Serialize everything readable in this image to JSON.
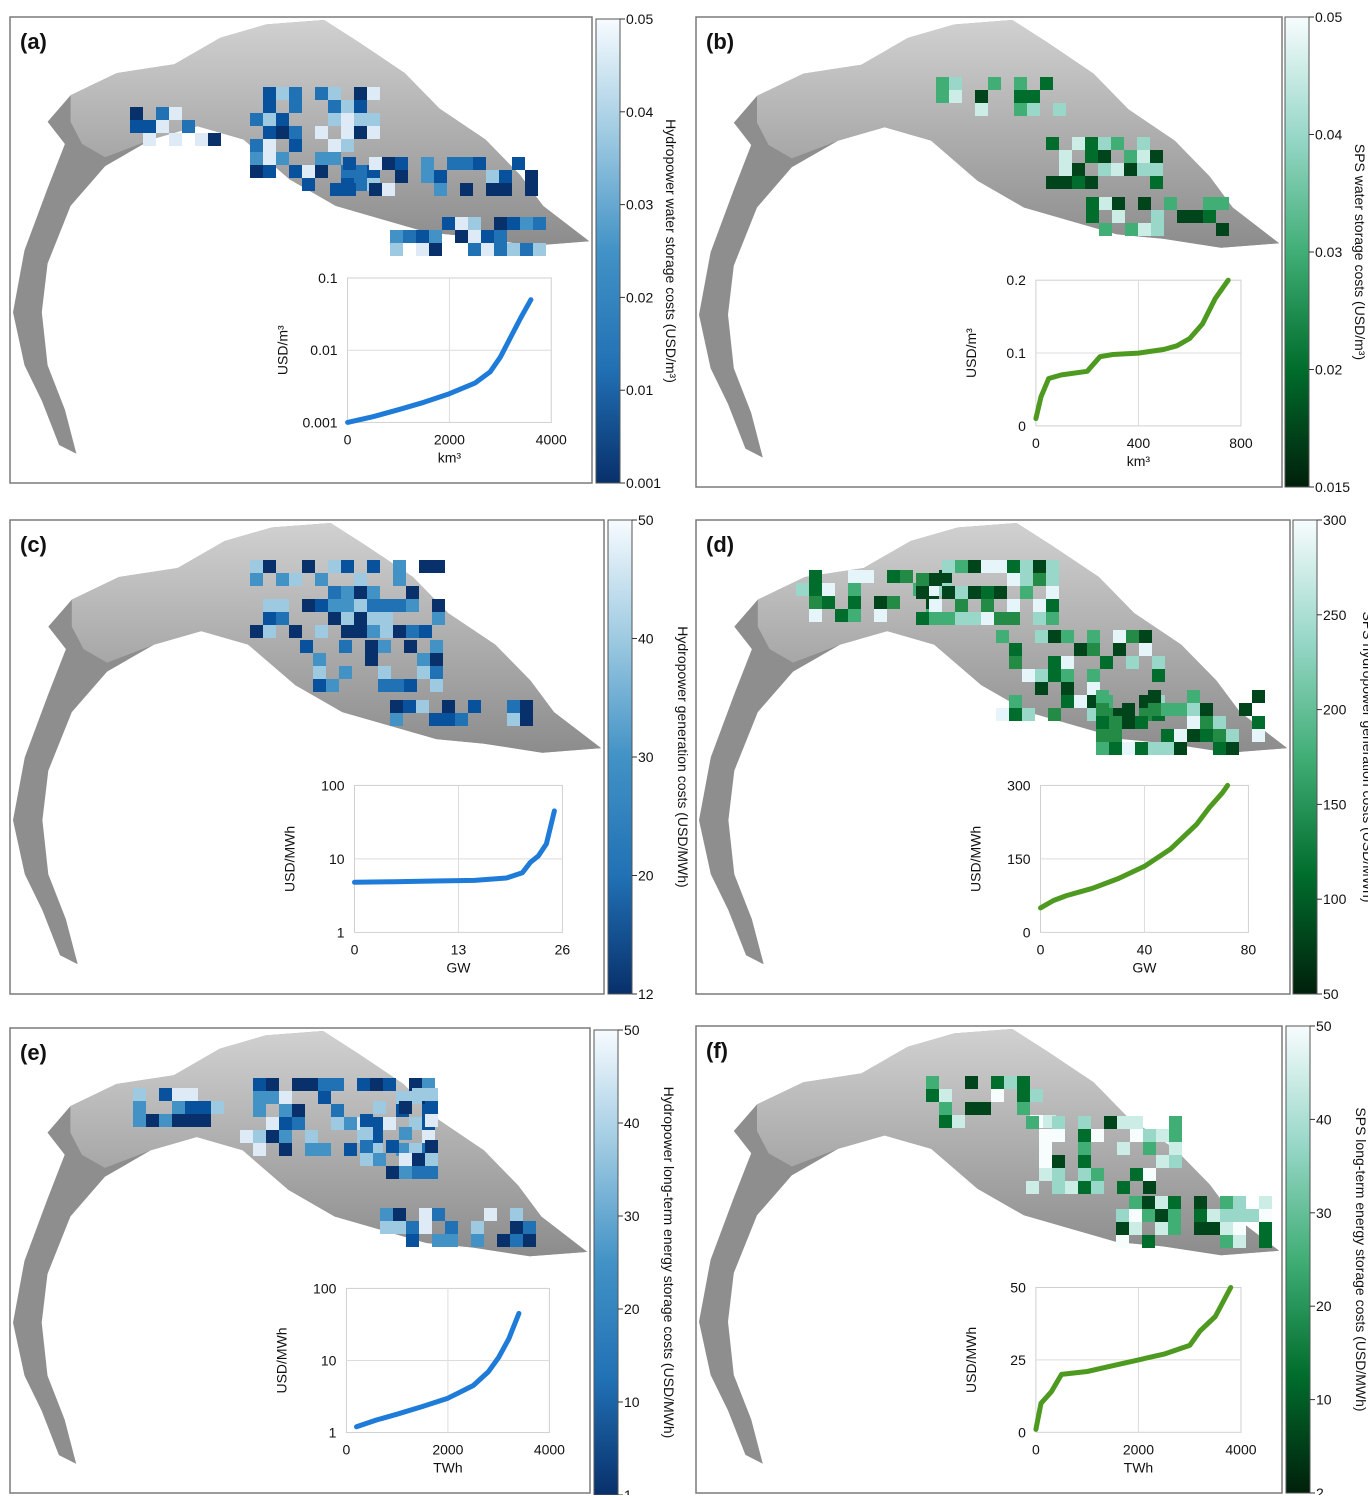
{
  "panels": [
    {
      "id": "a",
      "label": "(a)",
      "colorbar": {
        "title": "Hydropower water storage costs (USD/m³)",
        "ticks": [
          "0.05",
          "0.04",
          "0.03",
          "0.02",
          "0.01",
          "0.001"
        ],
        "colors": [
          "#f7fbff",
          "#9ecae1",
          "#4292c6",
          "#2171b5",
          "#08306b"
        ]
      },
      "cells": {
        "palette": [
          "#08306b",
          "#08519c",
          "#2171b5",
          "#4292c6",
          "#9ecae1",
          "#deebf7"
        ],
        "clusters": [
          [
            240,
            70,
            130,
            110
          ],
          [
            120,
            90,
            100,
            40
          ],
          [
            380,
            200,
            160,
            45
          ],
          [
            320,
            140,
            220,
            50
          ]
        ]
      },
      "chart_data": {
        "type": "line",
        "color": "#1f7bd8",
        "xlabel": "km³",
        "ylabel": "USD/m³",
        "xlim": [
          0,
          4000
        ],
        "ylim": [
          0.001,
          0.1
        ],
        "yscale": "log",
        "xticks": [
          "0",
          "2000",
          "4000"
        ],
        "yticks": [
          "0.1",
          "0.01",
          "0.001"
        ],
        "x": [
          0,
          500,
          1000,
          1500,
          2000,
          2500,
          2800,
          3000,
          3200,
          3400,
          3600
        ],
        "y": [
          0.001,
          0.0012,
          0.0015,
          0.0019,
          0.0025,
          0.0035,
          0.005,
          0.008,
          0.015,
          0.028,
          0.05
        ]
      }
    },
    {
      "id": "b",
      "label": "(b)",
      "colorbar": {
        "title": "SPS water storage costs (USD/m³)",
        "ticks": [
          "0.05",
          "0.04",
          "0.03",
          "0.02",
          "0.015"
        ],
        "colors": [
          "#f7fcfd",
          "#99d8c9",
          "#41ae76",
          "#006d2c",
          "#00200b"
        ]
      },
      "cells": {
        "palette": [
          "#00441b",
          "#006d2c",
          "#41ae76",
          "#99d8c9",
          "#ccece6"
        ],
        "clusters": [
          [
            240,
            60,
            130,
            40
          ],
          [
            350,
            120,
            120,
            60
          ],
          [
            390,
            180,
            150,
            45
          ]
        ]
      },
      "chart_data": {
        "type": "line",
        "color": "#4e9a21",
        "xlabel": "km³",
        "ylabel": "USD/m³",
        "xlim": [
          0,
          800
        ],
        "ylim": [
          0,
          0.2
        ],
        "yscale": "linear",
        "xticks": [
          "0",
          "400",
          "800"
        ],
        "yticks": [
          "0.2",
          "0.1",
          "0"
        ],
        "x": [
          0,
          20,
          50,
          100,
          200,
          250,
          300,
          400,
          500,
          550,
          600,
          650,
          700,
          750
        ],
        "y": [
          0.01,
          0.04,
          0.065,
          0.07,
          0.075,
          0.095,
          0.098,
          0.1,
          0.105,
          0.11,
          0.12,
          0.14,
          0.175,
          0.2
        ]
      }
    },
    {
      "id": "c",
      "label": "(c)",
      "colorbar": {
        "title": "Hydropower generation costs (USD/MWh)",
        "ticks": [
          "50",
          "40",
          "30",
          "20",
          "12"
        ],
        "colors": [
          "#f7fbff",
          "#9ecae1",
          "#4292c6",
          "#2171b5",
          "#08306b"
        ]
      },
      "cells": {
        "palette": [
          "#08306b",
          "#08519c",
          "#2171b5",
          "#4292c6",
          "#9ecae1"
        ],
        "clusters": [
          [
            240,
            40,
            200,
            80
          ],
          [
            290,
            120,
            150,
            60
          ],
          [
            380,
            180,
            150,
            35
          ]
        ]
      },
      "chart_data": {
        "type": "line",
        "color": "#1f7bd8",
        "xlabel": "GW",
        "ylabel": "USD/MWh",
        "xlim": [
          0,
          26
        ],
        "ylim": [
          1,
          100
        ],
        "yscale": "log",
        "xticks": [
          "0",
          "13",
          "26"
        ],
        "yticks": [
          "100",
          "10",
          "1"
        ],
        "x": [
          0,
          5,
          10,
          15,
          19,
          21,
          22,
          23,
          24,
          25
        ],
        "y": [
          4.8,
          4.9,
          5,
          5.1,
          5.5,
          6.5,
          9,
          11,
          16,
          45
        ]
      }
    },
    {
      "id": "d",
      "label": "(d)",
      "colorbar": {
        "title": "SPS hydropower generation costs (USD/MWh)",
        "ticks": [
          "300",
          "250",
          "200",
          "150",
          "100",
          "50"
        ],
        "colors": [
          "#f7fcfd",
          "#99d8c9",
          "#41ae76",
          "#006d2c",
          "#00200b"
        ]
      },
      "cells": {
        "palette": [
          "#00441b",
          "#006d2c",
          "#238b45",
          "#41ae76",
          "#99d8c9",
          "#e5f5f9"
        ],
        "clusters": [
          [
            100,
            50,
            160,
            60
          ],
          [
            220,
            40,
            150,
            70
          ],
          [
            300,
            110,
            180,
            100
          ],
          [
            400,
            170,
            180,
            70
          ],
          [
            120,
            260,
            20,
            20
          ]
        ]
      },
      "chart_data": {
        "type": "line",
        "color": "#4e9a21",
        "xlabel": "GW",
        "ylabel": "USD/MWh",
        "xlim": [
          0,
          80
        ],
        "ylim": [
          0,
          300
        ],
        "yscale": "linear",
        "xticks": [
          "0",
          "40",
          "80"
        ],
        "yticks": [
          "300",
          "150",
          "0"
        ],
        "x": [
          0,
          5,
          10,
          20,
          30,
          40,
          50,
          60,
          65,
          70,
          72
        ],
        "y": [
          50,
          65,
          75,
          90,
          110,
          135,
          170,
          220,
          255,
          285,
          300
        ]
      }
    },
    {
      "id": "e",
      "label": "(e)",
      "colorbar": {
        "title": "Hydropower long-term energy storage costs (USD/MWh)",
        "ticks": [
          "50",
          "40",
          "30",
          "20",
          "10",
          "1"
        ],
        "colors": [
          "#f7fbff",
          "#9ecae1",
          "#4292c6",
          "#2171b5",
          "#08306b"
        ]
      },
      "cells": {
        "palette": [
          "#08306b",
          "#08519c",
          "#2171b5",
          "#4292c6",
          "#9ecae1",
          "#deebf7"
        ],
        "clusters": [
          [
            110,
            60,
            110,
            50
          ],
          [
            230,
            50,
            200,
            90
          ],
          [
            350,
            60,
            90,
            100
          ],
          [
            370,
            180,
            160,
            40
          ]
        ]
      },
      "chart_data": {
        "type": "line",
        "color": "#1f7bd8",
        "xlabel": "TWh",
        "ylabel": "USD/MWh",
        "xlim": [
          0,
          4000
        ],
        "ylim": [
          1,
          100
        ],
        "yscale": "log",
        "xticks": [
          "0",
          "2000",
          "4000"
        ],
        "yticks": [
          "100",
          "10",
          "1"
        ],
        "x": [
          200,
          600,
          1000,
          1500,
          2000,
          2500,
          2800,
          3000,
          3200,
          3400
        ],
        "y": [
          1.2,
          1.5,
          1.8,
          2.3,
          3,
          4.5,
          7,
          11,
          20,
          45
        ]
      }
    },
    {
      "id": "f",
      "label": "(f)",
      "colorbar": {
        "title": "SPS long-term energy storage costs (USD/MWh)",
        "ticks": [
          "50",
          "40",
          "30",
          "20",
          "10",
          "2"
        ],
        "colors": [
          "#f7fcfd",
          "#99d8c9",
          "#41ae76",
          "#006d2c",
          "#00200b"
        ]
      },
      "cells": {
        "palette": [
          "#00441b",
          "#006d2c",
          "#41ae76",
          "#99d8c9",
          "#ccece6",
          "#f7fcfd"
        ],
        "clusters": [
          [
            230,
            50,
            140,
            60
          ],
          [
            330,
            90,
            160,
            90
          ],
          [
            420,
            170,
            160,
            60
          ]
        ]
      },
      "chart_data": {
        "type": "line",
        "color": "#4e9a21",
        "xlabel": "TWh",
        "ylabel": "USD/MWh",
        "xlim": [
          0,
          4000
        ],
        "ylim": [
          0,
          50
        ],
        "yscale": "linear",
        "xticks": [
          "0",
          "2000",
          "4000"
        ],
        "yticks": [
          "50",
          "25",
          "0"
        ],
        "x": [
          0,
          100,
          300,
          500,
          1000,
          1500,
          2000,
          2500,
          3000,
          3200,
          3500,
          3800
        ],
        "y": [
          1,
          10,
          14,
          20,
          21,
          23,
          25,
          27,
          30,
          35,
          40,
          50
        ]
      }
    }
  ]
}
